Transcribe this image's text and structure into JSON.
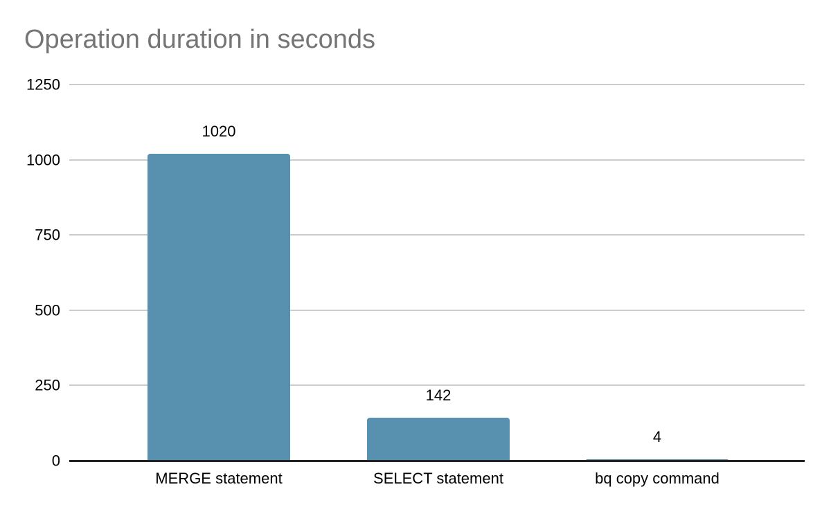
{
  "chart_data": {
    "type": "bar",
    "title": "Operation duration in seconds",
    "categories": [
      "MERGE statement",
      "SELECT statement",
      "bq copy command"
    ],
    "values": [
      1020,
      142,
      4
    ],
    "data_labels": [
      "1020",
      "142",
      "4"
    ],
    "y_ticks": [
      0,
      250,
      500,
      750,
      1000,
      1250
    ],
    "ylim": [
      0,
      1250
    ],
    "xlabel": "",
    "ylabel": "",
    "grid": true,
    "legend": "none"
  },
  "colors": {
    "bar": "#5891B0",
    "title": "#757575",
    "gridline": "#cccccc",
    "axis": "#212121",
    "label": "#000000",
    "background": "#ffffff"
  }
}
